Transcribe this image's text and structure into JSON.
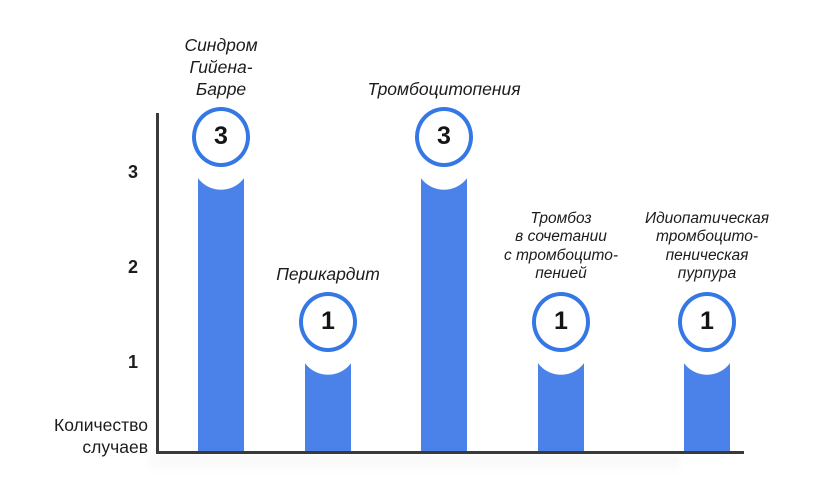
{
  "chart_data": {
    "type": "bar",
    "categories": [
      "Синдром\nГийена-\nБарре",
      "Перикардит",
      "Тромбоцитопения",
      "Тромбоз\nв сочетании\nс тромбоцито-\nпенией",
      "Идиопатическая\nтромбоцито-\nпеническая\nпурпура"
    ],
    "values": [
      3,
      1,
      3,
      1,
      1
    ],
    "yticks": [
      "3",
      "2",
      "1"
    ],
    "ylabel": "Количество\nслучаев",
    "xlabel": "",
    "title": "",
    "ylim": [
      0,
      3.2
    ],
    "grid": false,
    "legend": false,
    "bar_color": "#4A82E9",
    "circle_border_color": "#3578E5",
    "circle_fill_color": "#FFFFFF",
    "axis_color": "#3A3A3A",
    "label_text_color": "#1C1C1C"
  }
}
